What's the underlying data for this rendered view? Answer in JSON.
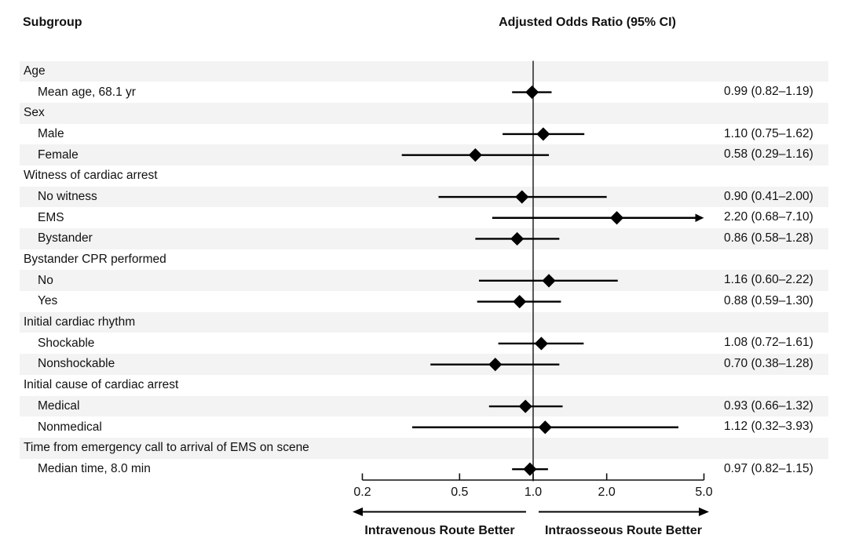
{
  "header": {
    "left_title": "Subgroup",
    "right_title": "Adjusted Odds Ratio (95% CI)"
  },
  "footer": {
    "left_direction_label": "Intravenous Route Better",
    "right_direction_label": "Intraosseous Route Better"
  },
  "colors": {
    "stripe": "#f3f3f3",
    "text": "#111111",
    "marker": "#000000",
    "reference_line": "#3d3d3d",
    "axis": "#111111"
  },
  "chart_data": {
    "type": "forest",
    "title": "Adjusted Odds Ratio (95% CI)",
    "x_scale": "log",
    "x_range": [
      0.2,
      5.0
    ],
    "x_ticks": [
      0.2,
      0.5,
      1.0,
      2.0,
      5.0
    ],
    "x_tick_labels": [
      "0.2",
      "0.5",
      "1.0",
      "2.0",
      "5.0"
    ],
    "reference_value": 1.0,
    "grid": false,
    "legend_position": "none",
    "direction_left": "Intravenous Route Better",
    "direction_right": "Intraosseous Route Better",
    "rows": [
      {
        "kind": "group",
        "label": "Age"
      },
      {
        "kind": "item",
        "label": "Mean age, 68.1 yr",
        "estimate": 0.99,
        "ci_low": 0.82,
        "ci_high": 1.19,
        "display": "0.99 (0.82–1.19)"
      },
      {
        "kind": "group",
        "label": "Sex"
      },
      {
        "kind": "item",
        "label": "Male",
        "estimate": 1.1,
        "ci_low": 0.75,
        "ci_high": 1.62,
        "display": "1.10 (0.75–1.62)"
      },
      {
        "kind": "item",
        "label": "Female",
        "estimate": 0.58,
        "ci_low": 0.29,
        "ci_high": 1.16,
        "display": "0.58 (0.29–1.16)"
      },
      {
        "kind": "group",
        "label": "Witness of cardiac arrest"
      },
      {
        "kind": "item",
        "label": "No witness",
        "estimate": 0.9,
        "ci_low": 0.41,
        "ci_high": 2.0,
        "display": "0.90 (0.41–2.00)"
      },
      {
        "kind": "item",
        "label": "EMS",
        "estimate": 2.2,
        "ci_low": 0.68,
        "ci_high": 7.1,
        "display": "2.20 (0.68–7.10)",
        "ci_high_off_scale": true
      },
      {
        "kind": "item",
        "label": "Bystander",
        "estimate": 0.86,
        "ci_low": 0.58,
        "ci_high": 1.28,
        "display": "0.86 (0.58–1.28)"
      },
      {
        "kind": "group",
        "label": "Bystander CPR performed"
      },
      {
        "kind": "item",
        "label": "No",
        "estimate": 1.16,
        "ci_low": 0.6,
        "ci_high": 2.22,
        "display": "1.16 (0.60–2.22)"
      },
      {
        "kind": "item",
        "label": "Yes",
        "estimate": 0.88,
        "ci_low": 0.59,
        "ci_high": 1.3,
        "display": "0.88 (0.59–1.30)"
      },
      {
        "kind": "group",
        "label": "Initial cardiac rhythm"
      },
      {
        "kind": "item",
        "label": "Shockable",
        "estimate": 1.08,
        "ci_low": 0.72,
        "ci_high": 1.61,
        "display": "1.08 (0.72–1.61)"
      },
      {
        "kind": "item",
        "label": "Nonshockable",
        "estimate": 0.7,
        "ci_low": 0.38,
        "ci_high": 1.28,
        "display": "0.70 (0.38–1.28)"
      },
      {
        "kind": "group",
        "label": "Initial cause of cardiac arrest"
      },
      {
        "kind": "item",
        "label": "Medical",
        "estimate": 0.93,
        "ci_low": 0.66,
        "ci_high": 1.32,
        "display": "0.93 (0.66–1.32)"
      },
      {
        "kind": "item",
        "label": "Nonmedical",
        "estimate": 1.12,
        "ci_low": 0.32,
        "ci_high": 3.93,
        "display": "1.12 (0.32–3.93)"
      },
      {
        "kind": "group",
        "label": "Time from emergency call to arrival of EMS on scene"
      },
      {
        "kind": "item",
        "label": "Median time, 8.0 min",
        "estimate": 0.97,
        "ci_low": 0.82,
        "ci_high": 1.15,
        "display": "0.97 (0.82–1.15)"
      }
    ]
  }
}
